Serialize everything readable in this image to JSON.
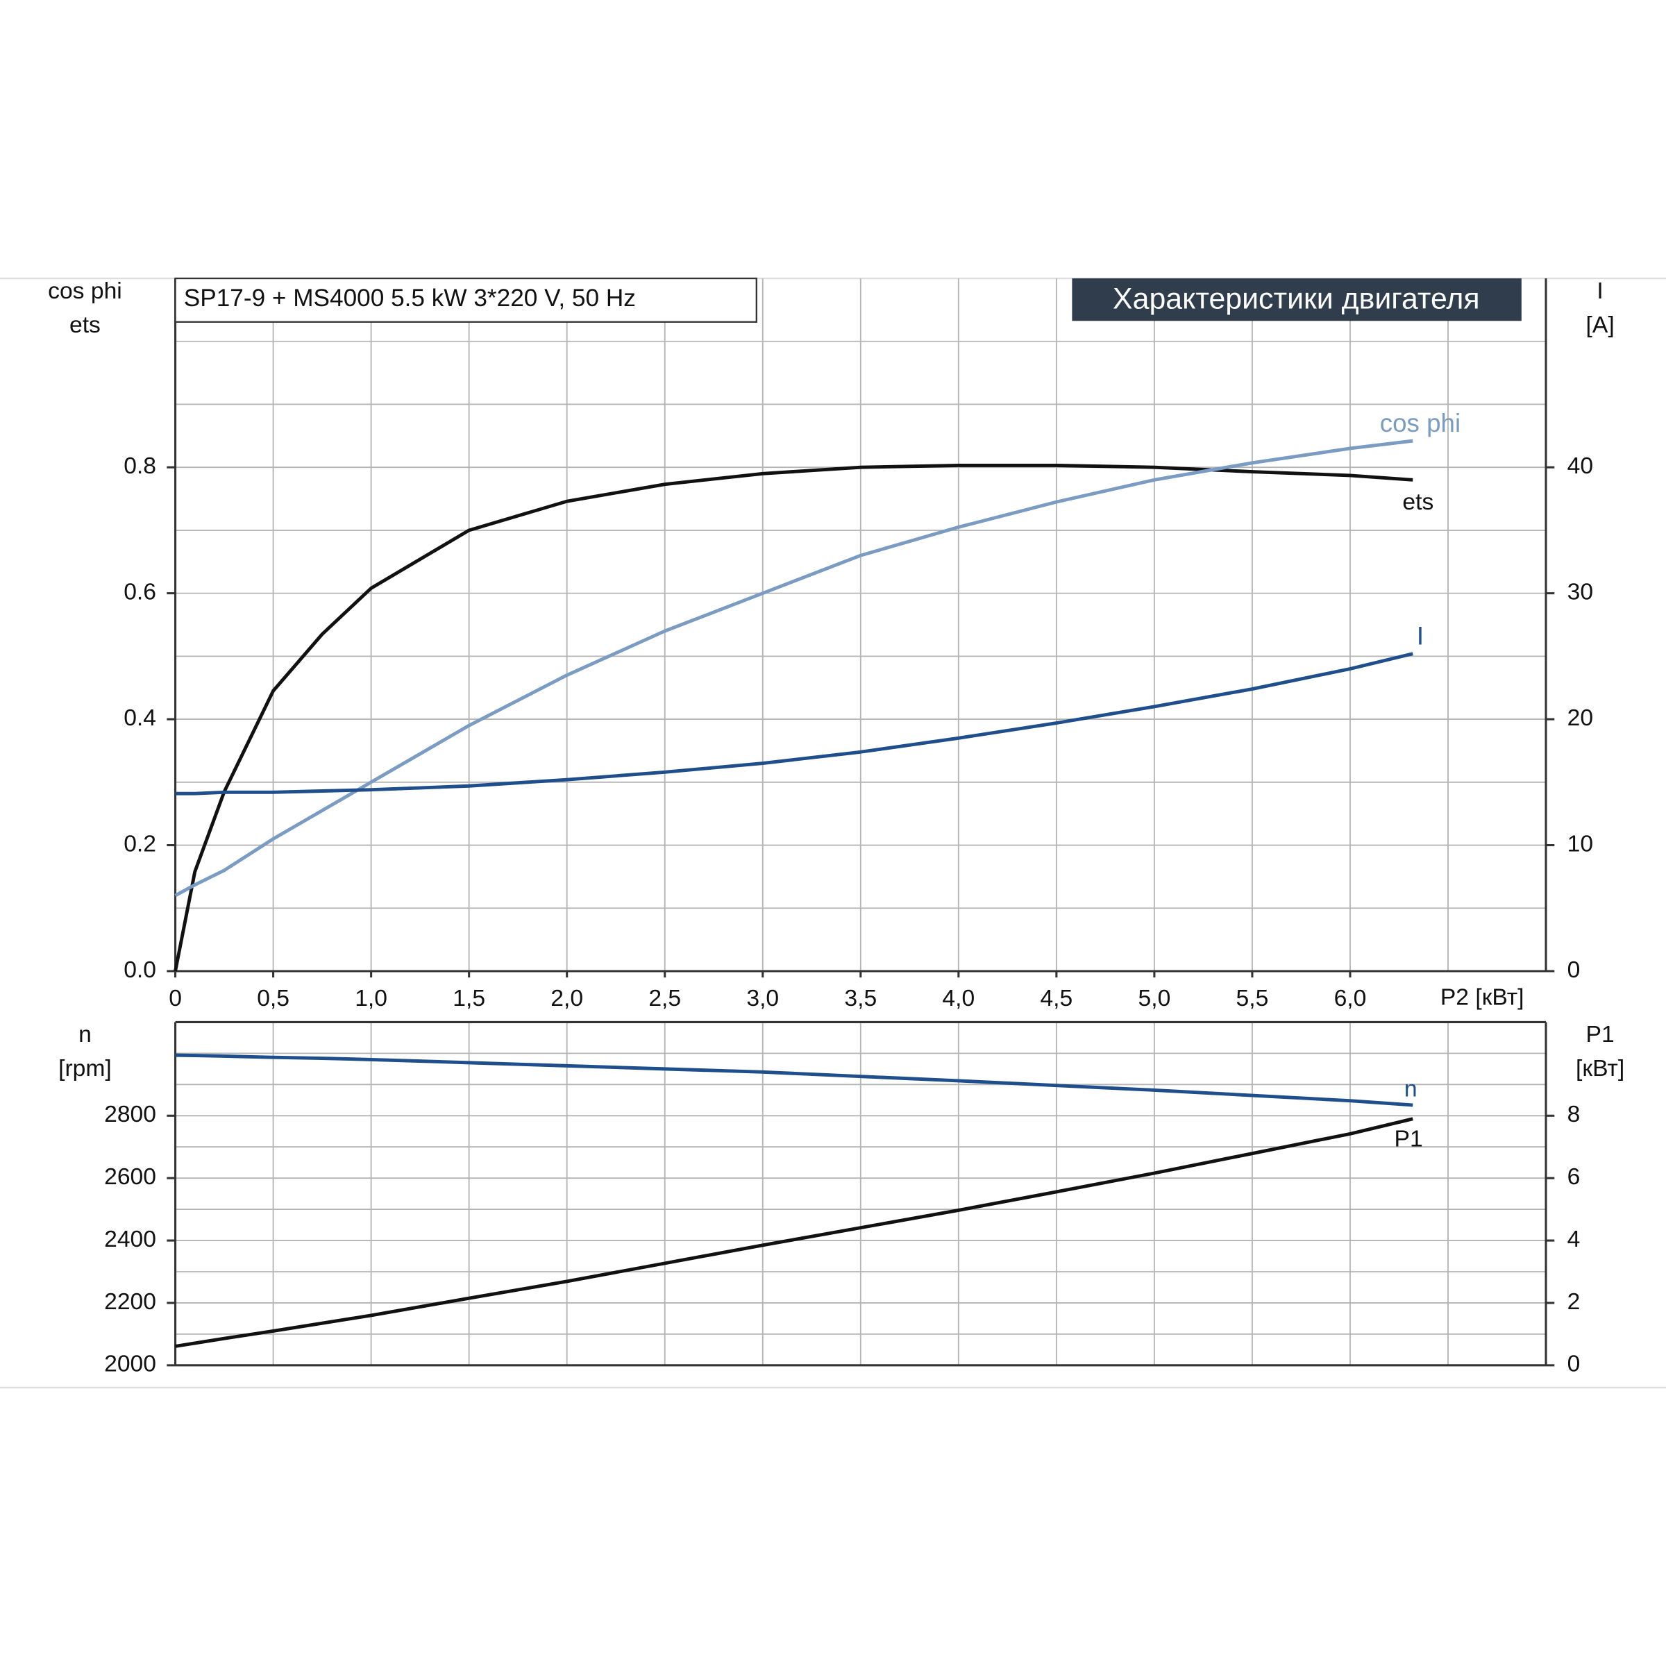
{
  "chart_data": [
    {
      "type": "line",
      "title": "SP17-9 + MS4000   5.5 kW   3*220 V, 50 Hz",
      "subtitle": "Характеристики двигателя",
      "ylabel": [
        "cos phi",
        "ets"
      ],
      "y2label": [
        "I",
        "[A]"
      ],
      "xlabel": "P2 [кВт]",
      "x": [
        0,
        0.1,
        0.25,
        0.5,
        0.75,
        1,
        1.5,
        2,
        2.5,
        3,
        3.5,
        4,
        4.5,
        5,
        5.5,
        6,
        6.32
      ],
      "xlim": [
        0,
        7
      ],
      "xticks": [
        0,
        {
          "value": 0.5,
          "label": "0,5"
        },
        {
          "value": 1,
          "label": "1,0"
        },
        {
          "value": 1.5,
          "label": "1,5"
        },
        {
          "value": 2,
          "label": "2,0"
        },
        {
          "value": 2.5,
          "label": "2,5"
        },
        {
          "value": 3,
          "label": "3,0"
        },
        {
          "value": 3.5,
          "label": "3,5"
        },
        {
          "value": 4,
          "label": "4,0"
        },
        {
          "value": 4.5,
          "label": "4,5"
        },
        {
          "value": 5,
          "label": "5,0"
        },
        {
          "value": 5.5,
          "label": "5,5"
        },
        {
          "value": 6,
          "label": "6,0"
        }
      ],
      "ylim": [
        0,
        1.1
      ],
      "yticks": [
        {
          "value": 0,
          "label": "0.0"
        },
        0.2,
        0.4,
        0.6,
        0.8
      ],
      "y2lim": [
        0,
        55
      ],
      "y2ticks": [
        0,
        10,
        20,
        30,
        40
      ],
      "grid": true,
      "grid_step_x": 0.5,
      "grid_step_y": 0.1,
      "series": [
        {
          "name": "ets",
          "color": "#111111",
          "values": [
            0,
            0.158,
            0.285,
            0.445,
            0.535,
            0.608,
            0.7,
            0.746,
            0.773,
            0.79,
            0.8,
            0.803,
            0.803,
            0.8,
            0.793,
            0.787,
            0.78
          ]
        },
        {
          "name": "cos phi",
          "color": "#7a9cc2",
          "values": [
            0.12,
            0.137,
            0.16,
            0.21,
            0.255,
            0.3,
            0.39,
            0.47,
            0.54,
            0.6,
            0.66,
            0.705,
            0.745,
            0.78,
            0.807,
            0.83,
            0.842
          ]
        },
        {
          "name": "I",
          "color": "#1f4e8c",
          "axis": "y2",
          "values": [
            14.1,
            14.1,
            14.2,
            14.2,
            14.3,
            14.4,
            14.7,
            15.2,
            15.8,
            16.5,
            17.4,
            18.5,
            19.7,
            21,
            22.4,
            24,
            25.2
          ]
        }
      ]
    },
    {
      "type": "line",
      "ylabel": [
        "n",
        "[rpm]"
      ],
      "y2label": [
        "P1",
        "[кВт]"
      ],
      "x": [
        0,
        0.1,
        0.25,
        0.5,
        0.75,
        1,
        1.5,
        2,
        2.5,
        3,
        3.5,
        4,
        4.5,
        5,
        5.5,
        6,
        6.32
      ],
      "xlim": [
        0,
        7
      ],
      "ylim": [
        2000,
        3100
      ],
      "yticks": [
        2000,
        2200,
        2400,
        2600,
        2800
      ],
      "y2lim": [
        0,
        11
      ],
      "y2ticks": [
        0,
        2,
        4,
        6,
        8
      ],
      "grid": true,
      "grid_step_x": 0.5,
      "grid_step_y": 100,
      "series": [
        {
          "name": "n",
          "color": "#1f4e8c",
          "values": [
            2994,
            2993,
            2991,
            2987,
            2984,
            2980,
            2970,
            2960,
            2950,
            2940,
            2926,
            2912,
            2897,
            2882,
            2865,
            2848,
            2834
          ]
        },
        {
          "name": "P1",
          "color": "#111111",
          "axis": "y2",
          "values": [
            0.61,
            0.71,
            0.86,
            1.1,
            1.35,
            1.6,
            2.15,
            2.69,
            3.27,
            3.85,
            4.41,
            4.97,
            5.56,
            6.16,
            6.79,
            7.42,
            7.9
          ]
        }
      ]
    }
  ]
}
